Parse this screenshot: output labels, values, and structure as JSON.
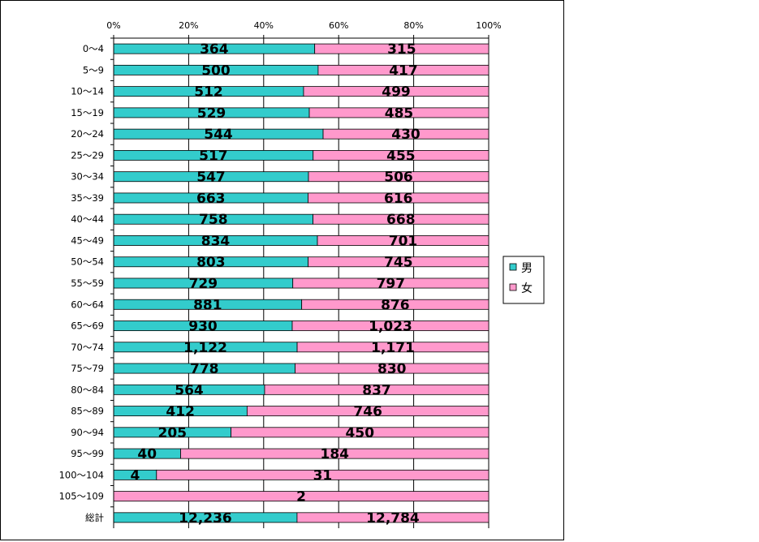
{
  "chart_data": {
    "type": "bar",
    "orientation": "horizontal",
    "stacked": "percent",
    "categories": [
      "0～4",
      "5～9",
      "10～14",
      "15～19",
      "20～24",
      "25～29",
      "30～34",
      "35～39",
      "40～44",
      "45～49",
      "50～54",
      "55～59",
      "60～64",
      "65～69",
      "70～74",
      "75～79",
      "80～84",
      "85～89",
      "90～94",
      "95～99",
      "100～104",
      "105～109",
      "総計"
    ],
    "series": [
      {
        "name": "男",
        "color": "#33cccc",
        "values": [
          364,
          500,
          512,
          529,
          544,
          517,
          547,
          663,
          758,
          834,
          803,
          729,
          881,
          930,
          1122,
          778,
          564,
          412,
          205,
          40,
          4,
          0,
          12236
        ],
        "labels": [
          "364",
          "500",
          "512",
          "529",
          "544",
          "517",
          "547",
          "663",
          "758",
          "834",
          "803",
          "729",
          "881",
          "930",
          "1,122",
          "778",
          "564",
          "412",
          "205",
          "40",
          "4",
          "",
          "12,236"
        ]
      },
      {
        "name": "女",
        "color": "#ff99cc",
        "values": [
          315,
          417,
          499,
          485,
          430,
          455,
          506,
          616,
          668,
          701,
          745,
          797,
          876,
          1023,
          1171,
          830,
          837,
          746,
          450,
          184,
          31,
          2,
          12784
        ],
        "labels": [
          "315",
          "417",
          "499",
          "485",
          "430",
          "455",
          "506",
          "616",
          "668",
          "701",
          "745",
          "797",
          "876",
          "1,023",
          "1,171",
          "830",
          "837",
          "746",
          "450",
          "184",
          "31",
          "2",
          "12,784"
        ]
      }
    ],
    "xticks": [
      "0%",
      "20%",
      "40%",
      "60%",
      "80%",
      "100%"
    ],
    "xlim": [
      0,
      100
    ],
    "grid": "vertical",
    "legend": "right"
  }
}
